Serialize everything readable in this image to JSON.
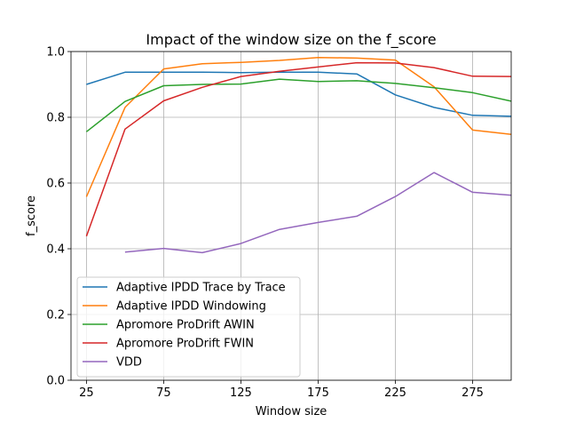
{
  "chart_data": {
    "type": "line",
    "title": "Impact of the window size on the f_score",
    "xlabel": "Window size",
    "ylabel": "f_score",
    "xlim": [
      15,
      300
    ],
    "ylim": [
      0.0,
      1.0
    ],
    "xticks": [
      25,
      75,
      125,
      175,
      225,
      275
    ],
    "yticks": [
      0.0,
      0.2,
      0.4,
      0.6,
      0.8,
      1.0
    ],
    "x": [
      25,
      50,
      75,
      100,
      125,
      150,
      175,
      200,
      225,
      250,
      275,
      300
    ],
    "grid": true,
    "legend_position": "lower left",
    "series": [
      {
        "name": "Adaptive IPDD Trace by Trace",
        "color": "#1f77b4",
        "values": [
          0.9,
          0.937,
          0.937,
          0.937,
          0.936,
          0.937,
          0.937,
          0.932,
          0.868,
          0.83,
          0.806,
          0.803
        ]
      },
      {
        "name": "Adaptive IPDD Windowing",
        "color": "#ff7f0e",
        "values": [
          0.558,
          0.83,
          0.947,
          0.963,
          0.967,
          0.973,
          0.982,
          0.98,
          0.974,
          0.893,
          0.761,
          0.748
        ]
      },
      {
        "name": "Apromore ProDrift AWIN",
        "color": "#2ca02c",
        "values": [
          0.756,
          0.848,
          0.896,
          0.9,
          0.901,
          0.916,
          0.909,
          0.911,
          0.903,
          0.89,
          0.875,
          0.849
        ]
      },
      {
        "name": "Apromore ProDrift FWIN",
        "color": "#d62728",
        "values": [
          0.438,
          0.764,
          0.85,
          0.891,
          0.924,
          0.94,
          0.953,
          0.966,
          0.965,
          0.951,
          0.925,
          0.924
        ]
      },
      {
        "name": "VDD",
        "color": "#9467bd",
        "values": [
          null,
          0.39,
          0.401,
          0.388,
          0.416,
          0.459,
          0.48,
          0.499,
          0.559,
          0.632,
          0.572,
          0.563
        ]
      }
    ]
  }
}
